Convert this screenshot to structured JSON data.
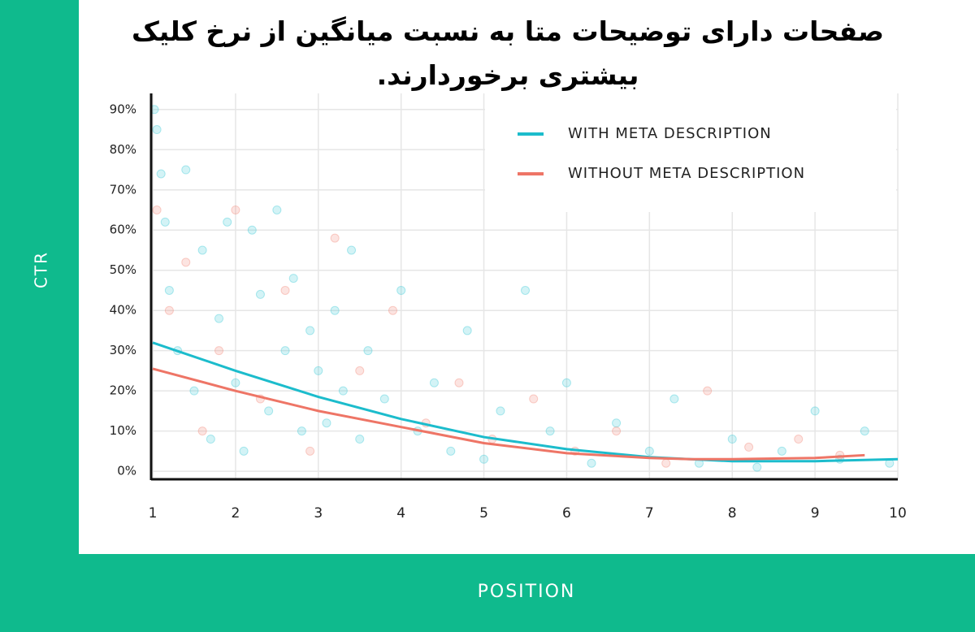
{
  "chart_data": {
    "type": "line",
    "title": "صفحات دارای توضیحات متا به نسبت میانگین از نرخ کلیک بیشتری برخوردارند.",
    "x_label": "POSITION",
    "y_label": "CTR",
    "xlim": [
      1,
      10
    ],
    "ylim": [
      -2,
      94
    ],
    "xticks": [
      1,
      2,
      3,
      4,
      5,
      6,
      7,
      8,
      9,
      10
    ],
    "yticks": [
      {
        "value": 0,
        "label": "0%"
      },
      {
        "value": 10,
        "label": "10%"
      },
      {
        "value": 20,
        "label": "20%"
      },
      {
        "value": 30,
        "label": "30%"
      },
      {
        "value": 40,
        "label": "40%"
      },
      {
        "value": 50,
        "label": "50%"
      },
      {
        "value": 60,
        "label": "60%"
      },
      {
        "value": 70,
        "label": "70%"
      },
      {
        "value": 80,
        "label": "80%"
      },
      {
        "value": 90,
        "label": "90%"
      }
    ],
    "grid": true,
    "legend": "upper right",
    "series": [
      {
        "type": "scatter",
        "color": "#22c3d0",
        "x": [
          1.02,
          1.05,
          1.1,
          1.15,
          1.2,
          1.3,
          1.4,
          1.5,
          1.6,
          1.7,
          1.8,
          1.9,
          2.0,
          2.1,
          2.2,
          2.3,
          2.4,
          2.5,
          2.6,
          2.7,
          2.8,
          2.9,
          3.0,
          3.1,
          3.2,
          3.3,
          3.4,
          3.5,
          3.6,
          3.8,
          4.0,
          4.2,
          4.4,
          4.6,
          4.8,
          5.0,
          5.2,
          5.5,
          5.8,
          6.0,
          6.3,
          6.6,
          7.0,
          7.3,
          7.6,
          8.0,
          8.3,
          8.6,
          9.0,
          9.3,
          9.6,
          9.9
        ],
        "values": [
          90,
          85,
          74,
          62,
          45,
          30,
          75,
          20,
          55,
          8,
          38,
          62,
          22,
          5,
          60,
          44,
          15,
          65,
          30,
          48,
          10,
          35,
          25,
          12,
          40,
          20,
          55,
          8,
          30,
          18,
          45,
          10,
          22,
          5,
          35,
          3,
          15,
          45,
          10,
          22,
          2,
          12,
          5,
          18,
          2,
          8,
          1,
          5,
          15,
          3,
          10,
          2
        ]
      },
      {
        "type": "scatter",
        "color": "#f07a6a",
        "x": [
          1.05,
          1.2,
          1.4,
          1.6,
          1.8,
          2.0,
          2.3,
          2.6,
          2.9,
          3.2,
          3.5,
          3.9,
          4.3,
          4.7,
          5.1,
          5.6,
          6.1,
          6.6,
          7.2,
          7.7,
          8.2,
          8.8,
          9.3
        ],
        "values": [
          65,
          40,
          52,
          10,
          30,
          65,
          18,
          45,
          5,
          58,
          25,
          40,
          12,
          22,
          8,
          18,
          5,
          10,
          2,
          20,
          6,
          8,
          4
        ]
      },
      {
        "type": "line",
        "name": "WITH META DESCRIPTION",
        "color": "#1cbccc",
        "x": [
          1,
          2,
          3,
          4,
          5,
          6,
          7,
          8,
          9,
          10
        ],
        "values": [
          32,
          25,
          18.5,
          13,
          8.5,
          5.5,
          3.5,
          2.5,
          2.5,
          3
        ]
      },
      {
        "type": "line",
        "name": "WITHOUT META DESCRIPTION",
        "color": "#ee7566",
        "x": [
          1,
          2,
          3,
          4,
          5,
          6,
          7,
          7.5,
          8,
          9,
          9.6
        ],
        "values": [
          25.5,
          20,
          15,
          11,
          7,
          4.5,
          3.3,
          3,
          3,
          3.3,
          4
        ]
      }
    ]
  }
}
